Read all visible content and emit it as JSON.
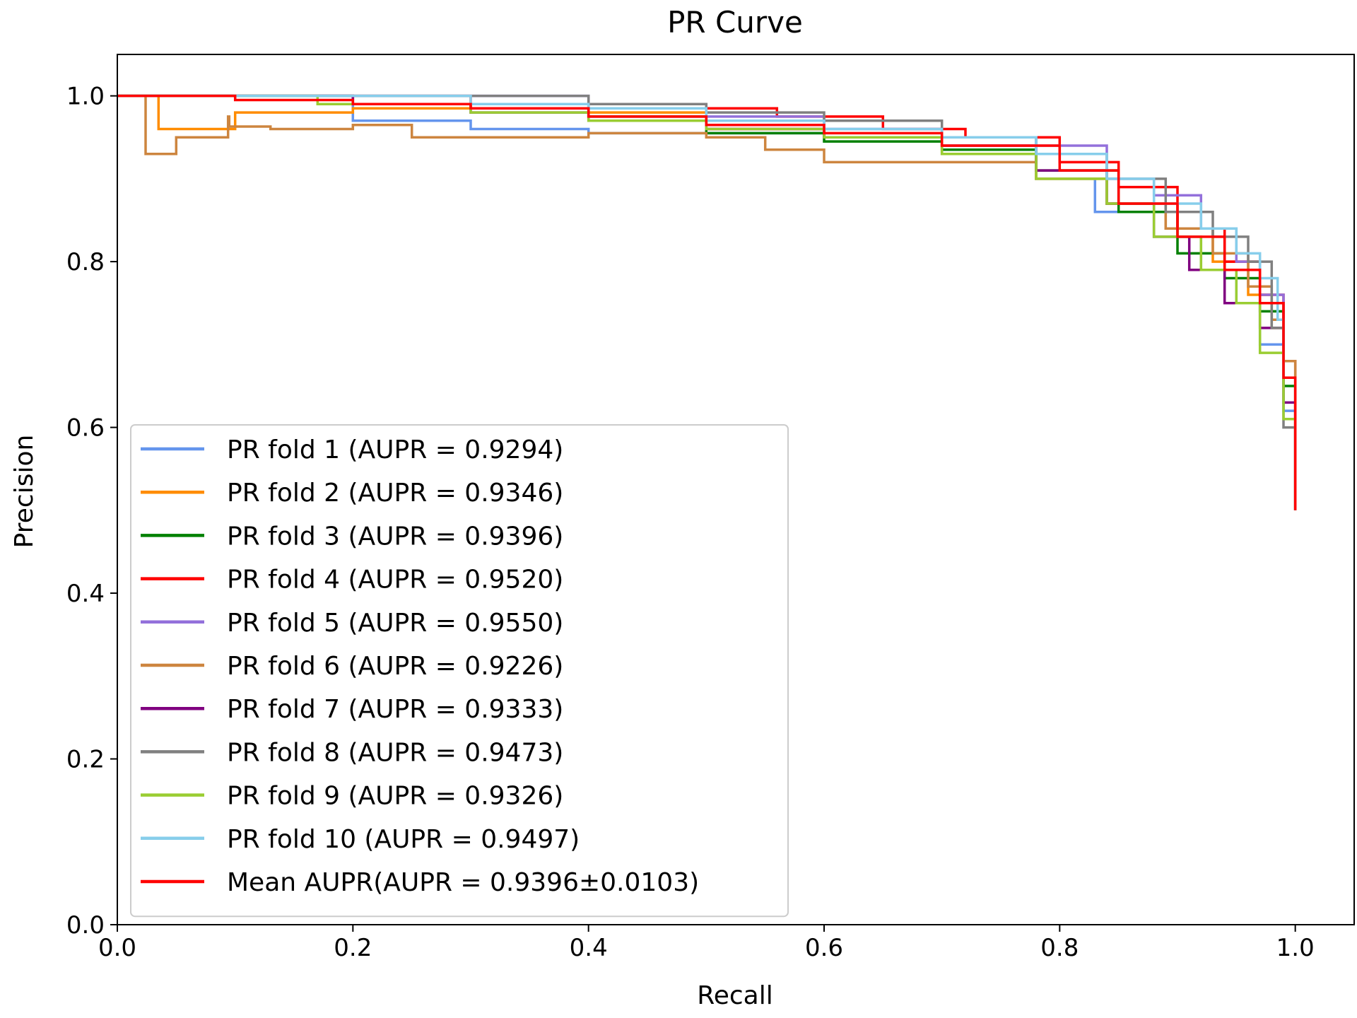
{
  "chart_data": {
    "type": "line",
    "title": "PR Curve",
    "xlabel": "Recall",
    "ylabel": "Precision",
    "xlim": [
      0.0,
      1.05
    ],
    "ylim": [
      0.0,
      1.05
    ],
    "xticks": [
      "0.0",
      "0.2",
      "0.4",
      "0.6",
      "0.8",
      "1.0"
    ],
    "yticks": [
      "0.0",
      "0.2",
      "0.4",
      "0.6",
      "0.8",
      "1.0"
    ],
    "grid": false,
    "legend_position": "lower-left",
    "series": [
      {
        "name": "PR fold 1 (AUPR = 0.9294)",
        "color": "#6495ed",
        "x": [
          0.0,
          0.05,
          0.19,
          0.2,
          0.3,
          0.4,
          0.5,
          0.6,
          0.7,
          0.78,
          0.83,
          0.88,
          0.92,
          0.95,
          0.97,
          0.99,
          1.0
        ],
        "y": [
          1.0,
          1.0,
          1.0,
          0.97,
          0.96,
          0.955,
          0.955,
          0.95,
          0.93,
          0.9,
          0.86,
          0.83,
          0.79,
          0.75,
          0.7,
          0.62,
          0.5
        ]
      },
      {
        "name": "PR fold 2 (AUPR = 0.9346)",
        "color": "#ff8c00",
        "x": [
          0.0,
          0.025,
          0.032,
          0.035,
          0.1,
          0.2,
          0.3,
          0.4,
          0.5,
          0.6,
          0.7,
          0.78,
          0.84,
          0.89,
          0.93,
          0.96,
          0.98,
          0.99,
          1.0
        ],
        "y": [
          1.0,
          1.0,
          1.0,
          0.96,
          0.98,
          0.985,
          0.985,
          0.98,
          0.96,
          0.95,
          0.93,
          0.9,
          0.87,
          0.84,
          0.8,
          0.76,
          0.72,
          0.66,
          0.5
        ]
      },
      {
        "name": "PR fold 3 (AUPR = 0.9396)",
        "color": "#008000",
        "x": [
          0.0,
          0.1,
          0.2,
          0.3,
          0.4,
          0.5,
          0.6,
          0.7,
          0.78,
          0.85,
          0.9,
          0.94,
          0.97,
          0.99,
          1.0
        ],
        "y": [
          1.0,
          1.0,
          0.99,
          0.985,
          0.975,
          0.955,
          0.945,
          0.935,
          0.91,
          0.86,
          0.81,
          0.78,
          0.74,
          0.65,
          0.5
        ]
      },
      {
        "name": "PR fold 4 (AUPR = 0.9520)",
        "color": "#ff0000",
        "x": [
          0.0,
          0.1,
          0.2,
          0.3,
          0.4,
          0.5,
          0.56,
          0.65,
          0.72,
          0.8,
          0.85,
          0.9,
          0.94,
          0.97,
          0.99,
          1.0
        ],
        "y": [
          1.0,
          1.0,
          1.0,
          0.99,
          0.985,
          0.985,
          0.975,
          0.96,
          0.95,
          0.92,
          0.89,
          0.84,
          0.8,
          0.76,
          0.68,
          0.5
        ]
      },
      {
        "name": "PR fold 5 (AUPR = 0.9550)",
        "color": "#9370db",
        "x": [
          0.0,
          0.2,
          0.38,
          0.4,
          0.5,
          0.6,
          0.7,
          0.78,
          0.84,
          0.88,
          0.92,
          0.95,
          0.97,
          0.99,
          1.0
        ],
        "y": [
          1.0,
          1.0,
          1.0,
          0.99,
          0.975,
          0.96,
          0.95,
          0.94,
          0.9,
          0.88,
          0.84,
          0.8,
          0.76,
          0.66,
          0.5
        ]
      },
      {
        "name": "PR fold 6 (AUPR = 0.9226)",
        "color": "#cd853f",
        "x": [
          0.0,
          0.022,
          0.024,
          0.05,
          0.094,
          0.095,
          0.13,
          0.2,
          0.25,
          0.3,
          0.4,
          0.5,
          0.55,
          0.6,
          0.7,
          0.78,
          0.84,
          0.89,
          0.93,
          0.96,
          0.98,
          0.99,
          1.0
        ],
        "y": [
          1.0,
          1.0,
          0.93,
          0.95,
          0.975,
          0.963,
          0.96,
          0.965,
          0.95,
          0.95,
          0.955,
          0.95,
          0.935,
          0.92,
          0.92,
          0.9,
          0.87,
          0.84,
          0.81,
          0.77,
          0.73,
          0.68,
          0.5
        ]
      },
      {
        "name": "PR fold 7 (AUPR = 0.9333)",
        "color": "#800080",
        "x": [
          0.0,
          0.1,
          0.2,
          0.3,
          0.4,
          0.5,
          0.6,
          0.7,
          0.78,
          0.84,
          0.88,
          0.91,
          0.94,
          0.97,
          0.99,
          1.0
        ],
        "y": [
          1.0,
          1.0,
          0.99,
          0.98,
          0.97,
          0.96,
          0.95,
          0.94,
          0.91,
          0.87,
          0.83,
          0.79,
          0.75,
          0.72,
          0.63,
          0.5
        ]
      },
      {
        "name": "PR fold 8 (AUPR = 0.9473)",
        "color": "#808080",
        "x": [
          0.0,
          0.2,
          0.3,
          0.4,
          0.5,
          0.6,
          0.7,
          0.78,
          0.84,
          0.89,
          0.93,
          0.96,
          0.98,
          0.99,
          1.0
        ],
        "y": [
          1.0,
          1.0,
          1.0,
          0.99,
          0.98,
          0.97,
          0.95,
          0.93,
          0.9,
          0.86,
          0.83,
          0.8,
          0.72,
          0.6,
          0.5
        ]
      },
      {
        "name": "PR fold 9 (AUPR = 0.9326)",
        "color": "#9acd32",
        "x": [
          0.0,
          0.15,
          0.17,
          0.2,
          0.3,
          0.4,
          0.5,
          0.6,
          0.7,
          0.78,
          0.84,
          0.88,
          0.92,
          0.95,
          0.97,
          0.99,
          1.0
        ],
        "y": [
          1.0,
          1.0,
          0.99,
          0.99,
          0.98,
          0.97,
          0.96,
          0.95,
          0.93,
          0.9,
          0.87,
          0.83,
          0.79,
          0.75,
          0.69,
          0.61,
          0.5
        ]
      },
      {
        "name": "PR fold 10 (AUPR = 0.9497)",
        "color": "#87ceeb",
        "x": [
          0.0,
          0.2,
          0.3,
          0.4,
          0.5,
          0.6,
          0.7,
          0.78,
          0.84,
          0.88,
          0.92,
          0.95,
          0.97,
          0.985,
          0.99,
          1.0
        ],
        "y": [
          1.0,
          1.0,
          0.99,
          0.985,
          0.97,
          0.96,
          0.95,
          0.93,
          0.9,
          0.87,
          0.84,
          0.81,
          0.78,
          0.73,
          0.66,
          0.5
        ]
      },
      {
        "name": "Mean AUPR(AUPR = 0.9396±0.0103)",
        "color": "#ff0000",
        "x": [
          0.0,
          0.1,
          0.2,
          0.3,
          0.4,
          0.5,
          0.6,
          0.7,
          0.8,
          0.85,
          0.9,
          0.94,
          0.97,
          0.99,
          1.0
        ],
        "y": [
          1.0,
          0.995,
          0.99,
          0.985,
          0.975,
          0.965,
          0.955,
          0.94,
          0.91,
          0.87,
          0.83,
          0.79,
          0.75,
          0.66,
          0.5
        ]
      }
    ]
  }
}
